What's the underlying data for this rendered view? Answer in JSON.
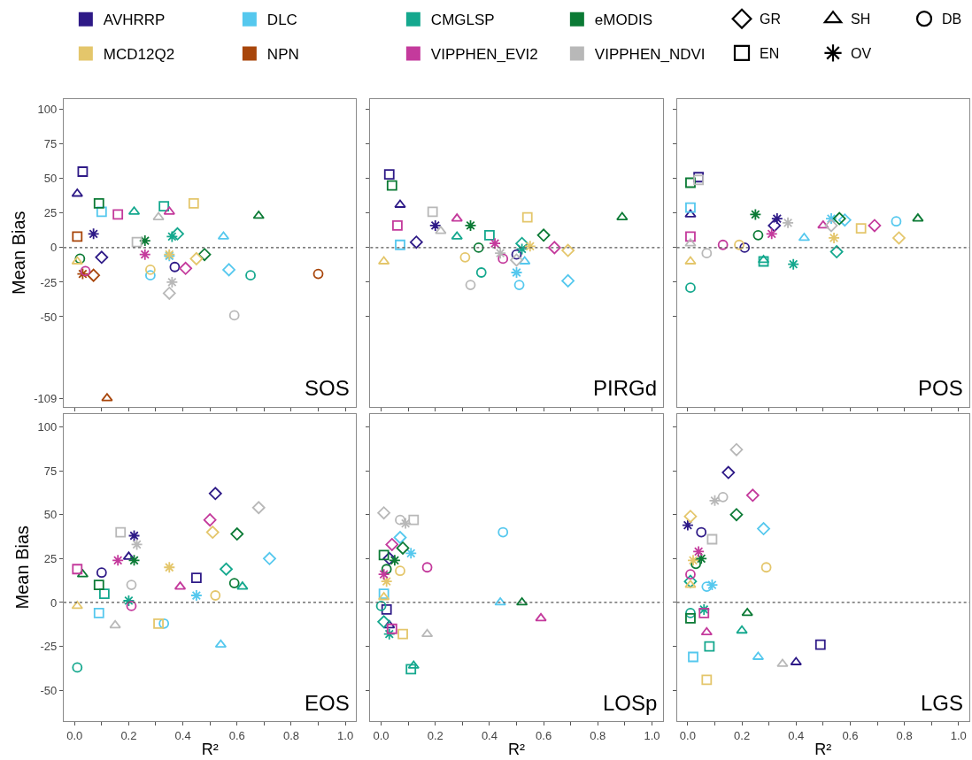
{
  "chart_data": [
    {
      "type": "scatter",
      "title": "SOS",
      "ylabel": "Mean Bias",
      "xlim": [
        -0.04,
        1.04
      ],
      "ylim": [
        -115,
        107.5
      ],
      "xticks": [
        {
          "value": 0,
          "label": null
        },
        {
          "value": 0.1,
          "label": null
        },
        {
          "value": 0.2,
          "label": null
        },
        {
          "value": 0.3,
          "label": null
        },
        {
          "value": 0.4,
          "label": null
        },
        {
          "value": 0.5,
          "label": null
        },
        {
          "value": 0.6,
          "label": null
        },
        {
          "value": 0.7,
          "label": null
        },
        {
          "value": 0.8,
          "label": null
        },
        {
          "value": 0.9,
          "label": null
        },
        {
          "value": 1,
          "label": null
        }
      ],
      "yticks": [
        -109,
        -50,
        -25,
        0,
        25,
        50,
        75,
        100
      ],
      "tick_labels": "y",
      "legend": "top",
      "ref_lines": [
        {
          "axis": "y",
          "value": 0,
          "color": "#555555",
          "line_style": "dotted"
        }
      ],
      "series": [
        {
          "name": "AVHRRP",
          "color": "#2e1a87",
          "marker": [
            "square",
            "triangle",
            "star",
            "diamond",
            "circle"
          ],
          "x": [
            0.03,
            0.01,
            0.07,
            0.1,
            0.37
          ],
          "values": [
            55,
            39,
            10,
            -7,
            -14
          ]
        },
        {
          "name": "DLC",
          "color": "#55c8ee",
          "marker": [
            "square",
            "circle",
            "triangle",
            "diamond",
            "star"
          ],
          "x": [
            0.1,
            0.28,
            0.55,
            0.57,
            0.35
          ],
          "values": [
            26,
            -20,
            8,
            -16,
            -6
          ]
        },
        {
          "name": "CMGLSP",
          "color": "#15a88e",
          "marker": [
            "triangle",
            "square",
            "star",
            "diamond",
            "circle"
          ],
          "x": [
            0.22,
            0.33,
            0.36,
            0.38,
            0.65
          ],
          "values": [
            26,
            30,
            8,
            10,
            -20
          ]
        },
        {
          "name": "eMODIS",
          "color": "#0b7a35",
          "marker": [
            "square",
            "star",
            "diamond",
            "triangle",
            "circle"
          ],
          "x": [
            0.09,
            0.26,
            0.48,
            0.68,
            0.02
          ],
          "values": [
            32,
            5,
            -5,
            23,
            -8
          ]
        },
        {
          "name": "MCD12Q2",
          "color": "#e4c66b",
          "marker": [
            "triangle",
            "circle",
            "square",
            "diamond",
            "star"
          ],
          "x": [
            0.01,
            0.28,
            0.44,
            0.45,
            0.35
          ],
          "values": [
            -10,
            -16,
            32,
            -8,
            -5
          ]
        },
        {
          "name": "NPN",
          "color": "#a8460b",
          "marker": [
            "square",
            "star",
            "diamond",
            "circle",
            "triangle"
          ],
          "x": [
            0.01,
            0.03,
            0.07,
            0.9,
            0.12
          ],
          "values": [
            8,
            -19,
            -20,
            -19,
            -109
          ]
        },
        {
          "name": "VIPPHEN_EVI2",
          "color": "#c43a9c",
          "marker": [
            "square",
            "triangle",
            "star",
            "circle",
            "diamond"
          ],
          "x": [
            0.16,
            0.35,
            0.26,
            0.04,
            0.41
          ],
          "values": [
            24,
            26,
            -5,
            -17,
            -15
          ]
        },
        {
          "name": "VIPPHEN_NDVI",
          "color": "#b8b8b8",
          "marker": [
            "triangle",
            "square",
            "star",
            "diamond",
            "circle"
          ],
          "x": [
            0.31,
            0.23,
            0.36,
            0.35,
            0.59
          ],
          "values": [
            22,
            4,
            -25,
            -33,
            -49
          ]
        },
        {
          "name": "GR",
          "color": "#000000",
          "marker": "diamond"
        },
        {
          "name": "SH",
          "color": "#000000",
          "marker": "triangle"
        },
        {
          "name": "DB",
          "color": "#000000",
          "marker": "circle"
        },
        {
          "name": "EN",
          "color": "#000000",
          "marker": "square"
        },
        {
          "name": "OV",
          "color": "#000000",
          "marker": "star"
        }
      ]
    },
    {
      "type": "scatter",
      "title": "PIRGd",
      "xlim": [
        -0.04,
        1.04
      ],
      "ylim": [
        -115,
        107.5
      ],
      "xticks": [
        {
          "value": 0,
          "label": null
        },
        {
          "value": 0.1,
          "label": null
        },
        {
          "value": 0.2,
          "label": null
        },
        {
          "value": 0.3,
          "label": null
        },
        {
          "value": 0.4,
          "label": null
        },
        {
          "value": 0.5,
          "label": null
        },
        {
          "value": 0.6,
          "label": null
        },
        {
          "value": 0.7,
          "label": null
        },
        {
          "value": 0.8,
          "label": null
        },
        {
          "value": 0.9,
          "label": null
        },
        {
          "value": 1,
          "label": null
        }
      ],
      "yticks": [
        -50,
        -25,
        0,
        25,
        50,
        75,
        100
      ],
      "tick_labels": false,
      "ref_lines": [
        {
          "axis": "y",
          "value": 0,
          "color": "#555555",
          "line_style": "dotted"
        }
      ],
      "series": [
        {
          "color": "#2e1a87",
          "marker": [
            "square",
            "triangle",
            "star",
            "diamond",
            "circle"
          ],
          "x": [
            0.03,
            0.07,
            0.2,
            0.13,
            0.5
          ],
          "values": [
            53,
            31,
            16,
            4,
            -5
          ]
        },
        {
          "color": "#55c8ee",
          "marker": [
            "square",
            "circle",
            "triangle",
            "star",
            "diamond"
          ],
          "x": [
            0.07,
            0.51,
            0.53,
            0.5,
            0.69
          ],
          "values": [
            2,
            -27,
            -10,
            -18,
            -24
          ]
        },
        {
          "color": "#15a88e",
          "marker": [
            "triangle",
            "square",
            "circle",
            "diamond",
            "star"
          ],
          "x": [
            0.28,
            0.4,
            0.37,
            0.52,
            0.52
          ],
          "values": [
            8,
            9,
            -18,
            3,
            -1
          ]
        },
        {
          "color": "#0b7a35",
          "marker": [
            "square",
            "star",
            "circle",
            "diamond",
            "triangle"
          ],
          "x": [
            0.04,
            0.33,
            0.36,
            0.6,
            0.89
          ],
          "values": [
            45,
            16,
            0,
            9,
            22
          ]
        },
        {
          "color": "#e4c66b",
          "marker": [
            "triangle",
            "circle",
            "square",
            "star",
            "diamond"
          ],
          "x": [
            0.01,
            0.31,
            0.54,
            0.55,
            0.69
          ],
          "values": [
            -10,
            -7,
            22,
            1,
            -2
          ]
        },
        {
          "color": "#c43a9c",
          "marker": [
            "square",
            "triangle",
            "star",
            "circle",
            "diamond"
          ],
          "x": [
            0.06,
            0.28,
            0.42,
            0.45,
            0.64
          ],
          "values": [
            16,
            21,
            3,
            -8,
            0
          ]
        },
        {
          "color": "#b8b8b8",
          "marker": [
            "square",
            "triangle",
            "star",
            "circle",
            "diamond"
          ],
          "x": [
            0.19,
            0.22,
            0.44,
            0.33,
            0.5
          ],
          "values": [
            26,
            12,
            -4,
            -27,
            -9
          ]
        }
      ]
    },
    {
      "type": "scatter",
      "title": "POS",
      "xlim": [
        -0.04,
        1.04
      ],
      "ylim": [
        -115,
        107.5
      ],
      "xticks": [
        {
          "value": 0,
          "label": null
        },
        {
          "value": 0.1,
          "label": null
        },
        {
          "value": 0.2,
          "label": null
        },
        {
          "value": 0.3,
          "label": null
        },
        {
          "value": 0.4,
          "label": null
        },
        {
          "value": 0.5,
          "label": null
        },
        {
          "value": 0.6,
          "label": null
        },
        {
          "value": 0.7,
          "label": null
        },
        {
          "value": 0.8,
          "label": null
        },
        {
          "value": 0.9,
          "label": null
        },
        {
          "value": 1,
          "label": null
        }
      ],
      "yticks": [
        -50,
        -25,
        0,
        25,
        50,
        75,
        100
      ],
      "tick_labels": false,
      "ref_lines": [
        {
          "axis": "y",
          "value": 0,
          "color": "#555555",
          "line_style": "dotted"
        }
      ],
      "series": [
        {
          "color": "#2e1a87",
          "marker": [
            "square",
            "triangle",
            "star",
            "diamond",
            "circle"
          ],
          "x": [
            0.04,
            0.01,
            0.33,
            0.32,
            0.21
          ],
          "values": [
            51,
            24,
            21,
            16,
            0
          ]
        },
        {
          "color": "#55c8ee",
          "marker": [
            "square",
            "triangle",
            "star",
            "diamond",
            "circle"
          ],
          "x": [
            0.01,
            0.43,
            0.53,
            0.58,
            0.77
          ],
          "values": [
            29,
            7,
            21,
            20,
            19
          ]
        },
        {
          "color": "#15a88e",
          "marker": [
            "circle",
            "square",
            "triangle",
            "star",
            "diamond"
          ],
          "x": [
            0.01,
            0.28,
            0.28,
            0.39,
            0.55
          ],
          "values": [
            -29,
            -10,
            -9,
            -12,
            -3
          ]
        },
        {
          "color": "#0b7a35",
          "marker": [
            "square",
            "star",
            "circle",
            "diamond",
            "triangle"
          ],
          "x": [
            0.01,
            0.25,
            0.26,
            0.56,
            0.85
          ],
          "values": [
            47,
            24,
            9,
            21,
            21
          ]
        },
        {
          "color": "#e4c66b",
          "marker": [
            "triangle",
            "circle",
            "star",
            "square",
            "diamond"
          ],
          "x": [
            0.01,
            0.19,
            0.54,
            0.64,
            0.78
          ],
          "values": [
            -10,
            2,
            7,
            14,
            7
          ]
        },
        {
          "color": "#c43a9c",
          "marker": [
            "square",
            "circle",
            "star",
            "triangle",
            "diamond"
          ],
          "x": [
            0.01,
            0.13,
            0.31,
            0.5,
            0.69
          ],
          "values": [
            8,
            2,
            10,
            16,
            16
          ]
        },
        {
          "color": "#b8b8b8",
          "marker": [
            "square",
            "triangle",
            "circle",
            "star",
            "diamond"
          ],
          "x": [
            0.04,
            0.01,
            0.07,
            0.37,
            0.53
          ],
          "values": [
            49,
            3,
            -4,
            18,
            16
          ]
        }
      ]
    },
    {
      "type": "scatter",
      "title": "EOS",
      "xlabel": "R²",
      "ylabel": "Mean Bias",
      "xlim": [
        -0.04,
        1.04
      ],
      "ylim": [
        -67.5,
        107.5
      ],
      "xticks": [
        {
          "value": 0,
          "label": "0.0"
        },
        {
          "value": 0.1,
          "label": null
        },
        {
          "value": 0.2,
          "label": "0.2"
        },
        {
          "value": 0.3,
          "label": null
        },
        {
          "value": 0.4,
          "label": "0.4"
        },
        {
          "value": 0.5,
          "label": null
        },
        {
          "value": 0.6,
          "label": "0.6"
        },
        {
          "value": 0.7,
          "label": null
        },
        {
          "value": 0.8,
          "label": "0.8"
        },
        {
          "value": 0.9,
          "label": null
        },
        {
          "value": 1,
          "label": "1.0"
        }
      ],
      "yticks": [
        -50,
        -25,
        0,
        25,
        50,
        75,
        100
      ],
      "ref_lines": [
        {
          "axis": "y",
          "value": 0,
          "color": "#555555",
          "line_style": "dotted"
        }
      ],
      "series": [
        {
          "color": "#2e1a87",
          "marker": [
            "circle",
            "triangle",
            "star",
            "square",
            "diamond"
          ],
          "x": [
            0.1,
            0.2,
            0.22,
            0.45,
            0.52
          ],
          "values": [
            17,
            26,
            38,
            14,
            62
          ]
        },
        {
          "color": "#55c8ee",
          "marker": [
            "square",
            "circle",
            "star",
            "triangle",
            "diamond"
          ],
          "x": [
            0.09,
            0.33,
            0.45,
            0.54,
            0.72
          ],
          "values": [
            -6,
            -12,
            4,
            -24,
            25
          ]
        },
        {
          "color": "#15a88e",
          "marker": [
            "circle",
            "square",
            "star",
            "diamond",
            "triangle"
          ],
          "x": [
            0.01,
            0.11,
            0.2,
            0.56,
            0.62
          ],
          "values": [
            -37,
            5,
            1,
            19,
            9
          ]
        },
        {
          "color": "#0b7a35",
          "marker": [
            "triangle",
            "square",
            "star",
            "circle",
            "diamond"
          ],
          "x": [
            0.03,
            0.09,
            0.22,
            0.59,
            0.6
          ],
          "values": [
            16,
            10,
            24,
            11,
            39
          ]
        },
        {
          "color": "#e4c66b",
          "marker": [
            "triangle",
            "square",
            "star",
            "circle",
            "diamond"
          ],
          "x": [
            0.01,
            0.31,
            0.35,
            0.52,
            0.51
          ],
          "values": [
            -2,
            -12,
            20,
            4,
            40
          ]
        },
        {
          "color": "#c43a9c",
          "marker": [
            "square",
            "star",
            "circle",
            "triangle",
            "diamond"
          ],
          "x": [
            0.01,
            0.16,
            0.21,
            0.39,
            0.5
          ],
          "values": [
            19,
            24,
            -2,
            9,
            47
          ]
        },
        {
          "color": "#b8b8b8",
          "marker": [
            "square",
            "triangle",
            "circle",
            "star",
            "diamond"
          ],
          "x": [
            0.17,
            0.15,
            0.21,
            0.23,
            0.68
          ],
          "values": [
            40,
            -13,
            10,
            33,
            54
          ]
        }
      ]
    },
    {
      "type": "scatter",
      "title": "LOSp",
      "xlabel": "R²",
      "xlim": [
        -0.04,
        1.04
      ],
      "ylim": [
        -67.5,
        107.5
      ],
      "xticks": [
        {
          "value": 0,
          "label": "0.0"
        },
        {
          "value": 0.1,
          "label": null
        },
        {
          "value": 0.2,
          "label": "0.2"
        },
        {
          "value": 0.3,
          "label": null
        },
        {
          "value": 0.4,
          "label": "0.4"
        },
        {
          "value": 0.5,
          "label": null
        },
        {
          "value": 0.6,
          "label": "0.6"
        },
        {
          "value": 0.7,
          "label": null
        },
        {
          "value": 0.8,
          "label": "0.8"
        },
        {
          "value": 0.9,
          "label": null
        },
        {
          "value": 1,
          "label": "1.0"
        }
      ],
      "yticks": [
        -50,
        -25,
        0,
        25,
        50,
        75,
        100
      ],
      "tick_labels": "x",
      "ref_lines": [
        {
          "axis": "y",
          "value": 0,
          "color": "#555555",
          "line_style": "dotted"
        }
      ],
      "series": [
        {
          "color": "#2e1a87",
          "marker": [
            "square",
            "diamond",
            "triangle"
          ],
          "x": [
            0.02,
            0.03,
            0.03
          ],
          "values": [
            -4,
            25,
            -13
          ]
        },
        {
          "color": "#55c8ee",
          "marker": [
            "square",
            "diamond",
            "star",
            "circle",
            "triangle"
          ],
          "x": [
            0.01,
            0.07,
            0.11,
            0.45,
            0.44
          ],
          "values": [
            5,
            37,
            28,
            40,
            0
          ]
        },
        {
          "color": "#15a88e",
          "marker": [
            "circle",
            "diamond",
            "star",
            "square",
            "triangle"
          ],
          "x": [
            0.0,
            0.01,
            0.03,
            0.11,
            0.12
          ],
          "values": [
            -2,
            -11,
            -18,
            -38,
            -36
          ]
        },
        {
          "color": "#0b7a35",
          "marker": [
            "square",
            "star",
            "diamond",
            "triangle",
            "circle"
          ],
          "x": [
            0.01,
            0.05,
            0.08,
            0.52,
            0.02
          ],
          "values": [
            27,
            24,
            31,
            0,
            19
          ]
        },
        {
          "color": "#e4c66b",
          "marker": [
            "triangle",
            "star",
            "circle",
            "square"
          ],
          "x": [
            0.01,
            0.02,
            0.07,
            0.08
          ],
          "values": [
            3,
            12,
            18,
            -18
          ]
        },
        {
          "color": "#c43a9c",
          "marker": [
            "star",
            "diamond",
            "circle",
            "triangle",
            "square"
          ],
          "x": [
            0.01,
            0.04,
            0.17,
            0.59,
            0.04
          ],
          "values": [
            16,
            33,
            20,
            -9,
            -15
          ]
        },
        {
          "color": "#b8b8b8",
          "marker": [
            "diamond",
            "circle",
            "square",
            "star",
            "triangle"
          ],
          "x": [
            0.01,
            0.07,
            0.12,
            0.09,
            0.17
          ],
          "values": [
            51,
            47,
            47,
            45,
            -18
          ]
        }
      ]
    },
    {
      "type": "scatter",
      "title": "LGS",
      "xlabel": "R²",
      "xlim": [
        -0.04,
        1.04
      ],
      "ylim": [
        -67.5,
        107.5
      ],
      "xticks": [
        {
          "value": 0,
          "label": "0.0"
        },
        {
          "value": 0.1,
          "label": null
        },
        {
          "value": 0.2,
          "label": "0.2"
        },
        {
          "value": 0.3,
          "label": null
        },
        {
          "value": 0.4,
          "label": "0.4"
        },
        {
          "value": 0.5,
          "label": null
        },
        {
          "value": 0.6,
          "label": "0.6"
        },
        {
          "value": 0.7,
          "label": null
        },
        {
          "value": 0.8,
          "label": "0.8"
        },
        {
          "value": 0.9,
          "label": null
        },
        {
          "value": 1,
          "label": "1.0"
        }
      ],
      "yticks": [
        -50,
        -25,
        0,
        25,
        50,
        75,
        100
      ],
      "tick_labels": "x",
      "ref_lines": [
        {
          "axis": "y",
          "value": 0,
          "color": "#555555",
          "line_style": "dotted"
        }
      ],
      "series": [
        {
          "color": "#2e1a87",
          "marker": [
            "star",
            "circle",
            "diamond",
            "square",
            "triangle"
          ],
          "x": [
            0.0,
            0.05,
            0.15,
            0.49,
            0.4
          ],
          "values": [
            44,
            40,
            74,
            -24,
            -34
          ]
        },
        {
          "color": "#55c8ee",
          "marker": [
            "square",
            "circle",
            "star",
            "diamond",
            "triangle"
          ],
          "x": [
            0.02,
            0.07,
            0.09,
            0.28,
            0.26
          ],
          "values": [
            -31,
            9,
            10,
            42,
            -31
          ]
        },
        {
          "color": "#15a88e",
          "marker": [
            "circle",
            "diamond",
            "star",
            "square",
            "triangle"
          ],
          "x": [
            0.01,
            0.01,
            0.06,
            0.08,
            0.2
          ],
          "values": [
            -6,
            12,
            -4,
            -25,
            -16
          ]
        },
        {
          "color": "#0b7a35",
          "marker": [
            "square",
            "star",
            "diamond",
            "triangle",
            "circle"
          ],
          "x": [
            0.01,
            0.05,
            0.18,
            0.22,
            0.03
          ],
          "values": [
            -9,
            25,
            50,
            -6,
            22
          ]
        },
        {
          "color": "#e4c66b",
          "marker": [
            "diamond",
            "star",
            "triangle",
            "circle",
            "square"
          ],
          "x": [
            0.01,
            0.02,
            0.01,
            0.29,
            0.07
          ],
          "values": [
            49,
            24,
            10,
            20,
            -44
          ]
        },
        {
          "color": "#c43a9c",
          "marker": [
            "circle",
            "star",
            "square",
            "triangle",
            "diamond"
          ],
          "x": [
            0.01,
            0.04,
            0.06,
            0.07,
            0.24
          ],
          "values": [
            16,
            29,
            -6,
            -17,
            61
          ]
        },
        {
          "color": "#b8b8b8",
          "marker": [
            "square",
            "star",
            "circle",
            "diamond",
            "triangle"
          ],
          "x": [
            0.09,
            0.1,
            0.13,
            0.18,
            0.35
          ],
          "values": [
            36,
            58,
            60,
            87,
            -35
          ]
        }
      ]
    }
  ]
}
